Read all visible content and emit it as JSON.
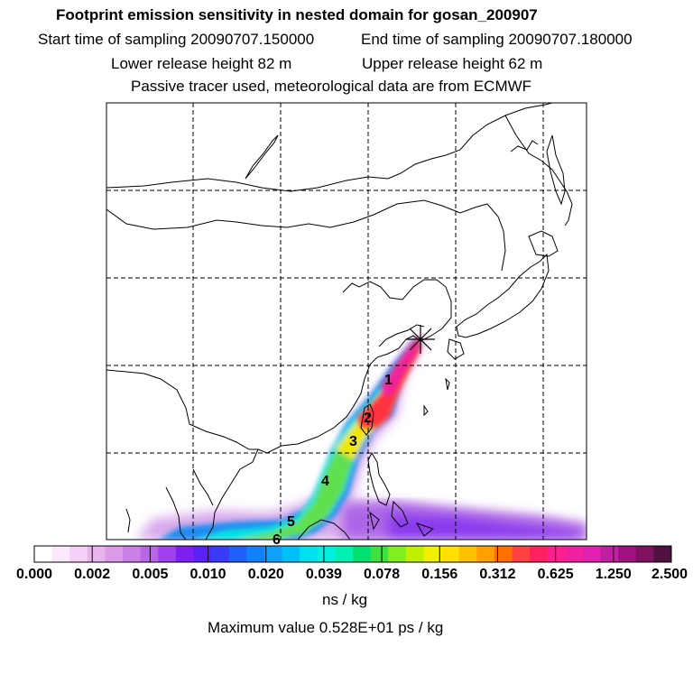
{
  "header": {
    "title": "Footprint emission sensitivity in nested domain for gosan_200907",
    "start_time": "Start time of sampling 20090707.150000",
    "end_time": "End time of sampling 20090707.180000",
    "lower_release": "Lower release height   82 m",
    "upper_release": "Upper release height   62 m",
    "tracer_note": "Passive tracer used, meteorological data are from ECMWF"
  },
  "map": {
    "track_labels": [
      "1",
      "2",
      "3",
      "4",
      "5",
      "6"
    ],
    "receptor_marker": "receptor-star-icon",
    "grid": "dashed"
  },
  "colorbar": {
    "ticks": [
      "0.000",
      "0.002",
      "0.005",
      "0.010",
      "0.020",
      "0.039",
      "0.078",
      "0.156",
      "0.312",
      "0.625",
      "1.250",
      "2.500"
    ],
    "unit": "ns / kg",
    "colors": [
      "#ffffff",
      "#fce8fc",
      "#f5cff5",
      "#eab5ee",
      "#dc9ae8",
      "#cc7fe6",
      "#b866e6",
      "#a040ee",
      "#8020f0",
      "#5a20f4",
      "#3a3af8",
      "#2060f8",
      "#1080f8",
      "#10a0f8",
      "#00c0f8",
      "#00e0f0",
      "#00f0e0",
      "#00f0b0",
      "#00e070",
      "#40e040",
      "#80f020",
      "#c0f000",
      "#f0f000",
      "#ffe000",
      "#ffc000",
      "#ffa000",
      "#ff7000",
      "#ff4040",
      "#ff2060",
      "#ff2090",
      "#f020a0",
      "#e020b0",
      "#c020a0",
      "#a01080",
      "#801060",
      "#501040"
    ]
  },
  "maximum_value": "Maximum value  0.528E+01 ps / kg"
}
